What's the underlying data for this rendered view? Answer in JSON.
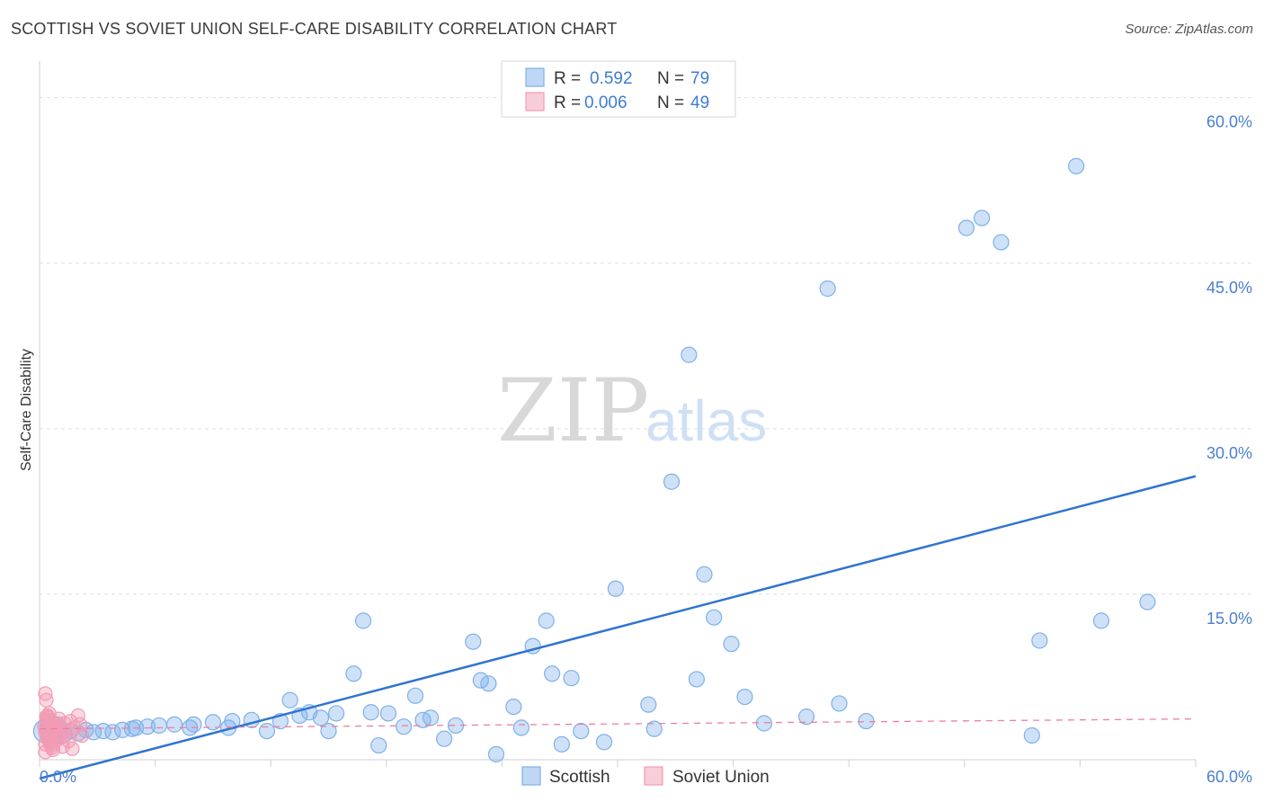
{
  "title": "SCOTTISH VS SOVIET UNION SELF-CARE DISABILITY CORRELATION CHART",
  "source": "Source: ZipAtlas.com",
  "watermark": {
    "zip": "ZIP",
    "atlas": "atlas"
  },
  "chart_data": {
    "type": "scatter",
    "xlabel": "",
    "ylabel": "Self-Care Disability",
    "xlim": [
      0,
      60
    ],
    "ylim": [
      0,
      62.5
    ],
    "x_tick_labels": [
      "0.0%",
      "60.0%"
    ],
    "y_ticks": [
      15,
      30,
      45,
      60
    ],
    "y_tick_labels": [
      "15.0%",
      "30.0%",
      "45.0%",
      "60.0%"
    ],
    "grid": true,
    "legend_position": "top-center",
    "legend": [
      {
        "name": "Scottish",
        "r_label": "R =",
        "r": "0.592",
        "n_label": "N =",
        "n": "79",
        "color": "#7fb0ea"
      },
      {
        "name": "Soviet Union",
        "r_label": "R =",
        "r": "0.006",
        "n_label": "N =",
        "n": "49",
        "color": "#f29bb5"
      }
    ],
    "series": [
      {
        "name": "Scottish",
        "color": "#7fb0ea",
        "trend": {
          "x": [
            0.0,
            60.0
          ],
          "y": [
            -1.7,
            25.7
          ],
          "color": "#2f74d0",
          "dashed": false
        },
        "points": [
          {
            "x": 0.3,
            "y": 2.6,
            "s": 3
          },
          {
            "x": 0.5,
            "y": 3.0,
            "s": 2
          },
          {
            "x": 0.7,
            "y": 2.4,
            "s": 3
          },
          {
            "x": 1.0,
            "y": 2.8,
            "s": 2
          },
          {
            "x": 1.2,
            "y": 2.3,
            "s": 2
          },
          {
            "x": 1.6,
            "y": 2.6,
            "s": 1
          },
          {
            "x": 2.0,
            "y": 2.4,
            "s": 1
          },
          {
            "x": 2.4,
            "y": 2.7,
            "s": 1
          },
          {
            "x": 2.8,
            "y": 2.5,
            "s": 1
          },
          {
            "x": 3.3,
            "y": 2.6,
            "s": 1
          },
          {
            "x": 3.8,
            "y": 2.5,
            "s": 1
          },
          {
            "x": 4.3,
            "y": 2.7,
            "s": 1
          },
          {
            "x": 5.0,
            "y": 2.9,
            "s": 1
          },
          {
            "x": 5.6,
            "y": 3.0,
            "s": 1
          },
          {
            "x": 6.2,
            "y": 3.1,
            "s": 1
          },
          {
            "x": 7.0,
            "y": 3.2,
            "s": 1
          },
          {
            "x": 8.0,
            "y": 3.2,
            "s": 1
          },
          {
            "x": 9.0,
            "y": 3.4,
            "s": 1
          },
          {
            "x": 10.0,
            "y": 3.5,
            "s": 1
          },
          {
            "x": 11.0,
            "y": 3.6,
            "s": 1
          },
          {
            "x": 4.8,
            "y": 2.8,
            "s": 1
          },
          {
            "x": 7.8,
            "y": 2.9,
            "s": 1
          },
          {
            "x": 9.8,
            "y": 2.9,
            "s": 1
          },
          {
            "x": 11.8,
            "y": 2.6,
            "s": 1
          },
          {
            "x": 13.0,
            "y": 5.4,
            "s": 1
          },
          {
            "x": 12.5,
            "y": 3.5,
            "s": 1
          },
          {
            "x": 13.5,
            "y": 4.0,
            "s": 1
          },
          {
            "x": 14.0,
            "y": 4.3,
            "s": 1
          },
          {
            "x": 14.6,
            "y": 3.8,
            "s": 1
          },
          {
            "x": 15.0,
            "y": 2.6,
            "s": 1
          },
          {
            "x": 15.4,
            "y": 4.2,
            "s": 1
          },
          {
            "x": 16.3,
            "y": 7.8,
            "s": 1
          },
          {
            "x": 16.8,
            "y": 12.6,
            "s": 1
          },
          {
            "x": 17.2,
            "y": 4.3,
            "s": 1
          },
          {
            "x": 17.6,
            "y": 1.3,
            "s": 1
          },
          {
            "x": 18.1,
            "y": 4.2,
            "s": 1
          },
          {
            "x": 18.9,
            "y": 3.0,
            "s": 1
          },
          {
            "x": 19.5,
            "y": 5.8,
            "s": 1
          },
          {
            "x": 19.9,
            "y": 3.6,
            "s": 1
          },
          {
            "x": 20.3,
            "y": 3.8,
            "s": 1
          },
          {
            "x": 21.0,
            "y": 1.9,
            "s": 1
          },
          {
            "x": 21.6,
            "y": 3.1,
            "s": 1
          },
          {
            "x": 22.5,
            "y": 10.7,
            "s": 1
          },
          {
            "x": 22.9,
            "y": 7.2,
            "s": 1
          },
          {
            "x": 23.3,
            "y": 6.9,
            "s": 1
          },
          {
            "x": 23.7,
            "y": 0.5,
            "s": 1
          },
          {
            "x": 24.6,
            "y": 4.8,
            "s": 1
          },
          {
            "x": 25.0,
            "y": 2.9,
            "s": 1
          },
          {
            "x": 25.6,
            "y": 10.3,
            "s": 1
          },
          {
            "x": 26.3,
            "y": 12.6,
            "s": 1
          },
          {
            "x": 26.6,
            "y": 7.8,
            "s": 1
          },
          {
            "x": 27.1,
            "y": 1.4,
            "s": 1
          },
          {
            "x": 27.6,
            "y": 7.4,
            "s": 1
          },
          {
            "x": 28.1,
            "y": 2.6,
            "s": 1
          },
          {
            "x": 29.3,
            "y": 1.6,
            "s": 1
          },
          {
            "x": 29.9,
            "y": 15.5,
            "s": 1
          },
          {
            "x": 31.6,
            "y": 5.0,
            "s": 1
          },
          {
            "x": 31.9,
            "y": 2.8,
            "s": 1
          },
          {
            "x": 32.8,
            "y": 25.2,
            "s": 1
          },
          {
            "x": 33.7,
            "y": 36.7,
            "s": 1
          },
          {
            "x": 34.1,
            "y": 7.3,
            "s": 1
          },
          {
            "x": 34.5,
            "y": 16.8,
            "s": 1
          },
          {
            "x": 35.0,
            "y": 12.9,
            "s": 1
          },
          {
            "x": 35.9,
            "y": 10.5,
            "s": 1
          },
          {
            "x": 36.6,
            "y": 5.7,
            "s": 1
          },
          {
            "x": 37.6,
            "y": 3.3,
            "s": 1
          },
          {
            "x": 39.8,
            "y": 3.9,
            "s": 1
          },
          {
            "x": 40.9,
            "y": 42.7,
            "s": 1
          },
          {
            "x": 41.5,
            "y": 5.1,
            "s": 1
          },
          {
            "x": 42.9,
            "y": 3.5,
            "s": 1
          },
          {
            "x": 48.1,
            "y": 48.2,
            "s": 1
          },
          {
            "x": 48.9,
            "y": 49.1,
            "s": 1
          },
          {
            "x": 49.9,
            "y": 46.9,
            "s": 1
          },
          {
            "x": 51.9,
            "y": 10.8,
            "s": 1
          },
          {
            "x": 51.5,
            "y": 2.2,
            "s": 1
          },
          {
            "x": 53.8,
            "y": 53.8,
            "s": 1
          },
          {
            "x": 55.1,
            "y": 12.6,
            "s": 1
          },
          {
            "x": 57.5,
            "y": 14.3,
            "s": 1
          },
          {
            "x": 0.9,
            "y": 3.2,
            "s": 1
          }
        ]
      },
      {
        "name": "Soviet Union",
        "color": "#f29bb5",
        "trend": {
          "x": [
            0.0,
            60.0
          ],
          "y": [
            2.8,
            3.7
          ],
          "color": "#ec7fa0",
          "dashed": true
        },
        "points": [
          {
            "x": 0.3,
            "y": 6.0
          },
          {
            "x": 0.35,
            "y": 5.4
          },
          {
            "x": 0.4,
            "y": 4.0
          },
          {
            "x": 0.45,
            "y": 3.8
          },
          {
            "x": 0.5,
            "y": 3.5
          },
          {
            "x": 0.55,
            "y": 3.3
          },
          {
            "x": 0.6,
            "y": 3.1
          },
          {
            "x": 0.65,
            "y": 2.9
          },
          {
            "x": 0.7,
            "y": 2.7
          },
          {
            "x": 0.3,
            "y": 2.5
          },
          {
            "x": 0.35,
            "y": 2.3
          },
          {
            "x": 0.4,
            "y": 2.1
          },
          {
            "x": 0.45,
            "y": 1.9
          },
          {
            "x": 0.5,
            "y": 1.7
          },
          {
            "x": 0.55,
            "y": 1.5
          },
          {
            "x": 0.6,
            "y": 1.3
          },
          {
            "x": 0.65,
            "y": 1.1
          },
          {
            "x": 0.7,
            "y": 0.9
          },
          {
            "x": 0.3,
            "y": 0.7
          },
          {
            "x": 0.35,
            "y": 3.9
          },
          {
            "x": 0.4,
            "y": 3.6
          },
          {
            "x": 0.45,
            "y": 3.0
          },
          {
            "x": 0.5,
            "y": 2.4
          },
          {
            "x": 0.55,
            "y": 2.0
          },
          {
            "x": 0.6,
            "y": 1.6
          },
          {
            "x": 0.65,
            "y": 3.4
          },
          {
            "x": 0.7,
            "y": 2.6
          },
          {
            "x": 0.8,
            "y": 3.2
          },
          {
            "x": 0.85,
            "y": 2.2
          },
          {
            "x": 0.9,
            "y": 1.8
          },
          {
            "x": 1.0,
            "y": 3.7
          },
          {
            "x": 1.05,
            "y": 2.8
          },
          {
            "x": 1.1,
            "y": 2.0
          },
          {
            "x": 1.2,
            "y": 1.2
          },
          {
            "x": 1.3,
            "y": 3.3
          },
          {
            "x": 1.4,
            "y": 2.5
          },
          {
            "x": 1.5,
            "y": 1.7
          },
          {
            "x": 1.6,
            "y": 3.5
          },
          {
            "x": 1.7,
            "y": 1.0
          },
          {
            "x": 1.8,
            "y": 2.9
          },
          {
            "x": 2.0,
            "y": 4.0
          },
          {
            "x": 2.1,
            "y": 3.2
          },
          {
            "x": 2.2,
            "y": 2.2
          },
          {
            "x": 0.25,
            "y": 3.0
          },
          {
            "x": 0.3,
            "y": 1.4
          },
          {
            "x": 0.4,
            "y": 2.8
          },
          {
            "x": 0.5,
            "y": 4.2
          },
          {
            "x": 1.2,
            "y": 2.4
          },
          {
            "x": 0.9,
            "y": 3.0
          }
        ]
      }
    ]
  }
}
